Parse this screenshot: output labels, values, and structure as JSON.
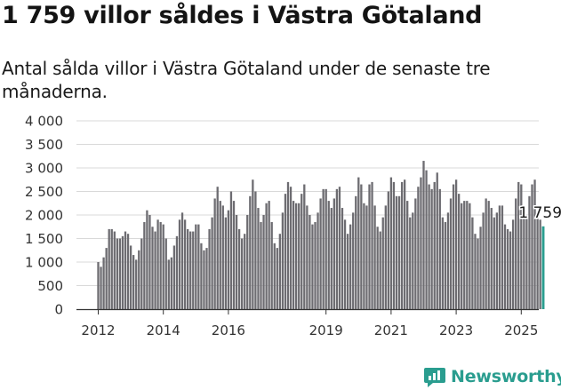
{
  "title": "1 759 villor såldes i Västra Götaland",
  "subtitle": "Antal sålda villor i Västra Götaland under de senaste tre månaderna.",
  "brand": {
    "name": "Newsworthy",
    "icon": "newsworthy-logo-icon",
    "color": "#2a9d8f"
  },
  "colors": {
    "bar": "#6d6c71",
    "highlight": "#2a9d8f",
    "axis": "#333333",
    "grid": "#d9d9d9"
  },
  "chart_data": {
    "type": "bar",
    "title": "",
    "xlabel": "",
    "ylabel": "",
    "ylim": [
      0,
      4000
    ],
    "yticks": [
      {
        "value": 0,
        "label": "0"
      },
      {
        "value": 500,
        "label": "500"
      },
      {
        "value": 1000,
        "label": "1 000"
      },
      {
        "value": 1500,
        "label": "1 500"
      },
      {
        "value": 2000,
        "label": "2 000"
      },
      {
        "value": 2500,
        "label": "2 500"
      },
      {
        "value": 3000,
        "label": "3 000"
      },
      {
        "value": 3500,
        "label": "3 500"
      },
      {
        "value": 4000,
        "label": "4 000"
      }
    ],
    "xticks": [
      {
        "year": 2012,
        "label": "2012"
      },
      {
        "year": 2014,
        "label": "2014"
      },
      {
        "year": 2016,
        "label": "2016"
      },
      {
        "year": 2019,
        "label": "2019"
      },
      {
        "year": 2021,
        "label": "2021"
      },
      {
        "year": 2023,
        "label": "2023"
      },
      {
        "year": 2025,
        "label": "2025"
      }
    ],
    "grid": true,
    "x_start": "2012-01",
    "series": [
      {
        "values": [
          1000,
          900,
          1100,
          1300,
          1700,
          1700,
          1650,
          1500,
          1500,
          1550,
          1650,
          1600,
          1350,
          1150,
          1050,
          1250,
          1500,
          1850,
          2100,
          2000,
          1750,
          1650,
          1900,
          1850,
          1800,
          1500,
          1050,
          1100,
          1350,
          1550,
          1900,
          2050,
          1900,
          1700,
          1650,
          1650,
          1800,
          1800,
          1400,
          1250,
          1300,
          1700,
          1950,
          2350,
          2600,
          2300,
          2200,
          1950,
          2100,
          2500,
          2300,
          2000,
          1700,
          1500,
          1600,
          2000,
          2400,
          2750,
          2500,
          2150,
          1850,
          2000,
          2250,
          2300,
          1850,
          1400,
          1300,
          1600,
          2050,
          2450,
          2700,
          2600,
          2300,
          2250,
          2250,
          2450,
          2650,
          2200,
          2000,
          1800,
          1850,
          2050,
          2350,
          2550,
          2550,
          2300,
          2150,
          2350,
          2550,
          2600,
          2150,
          1900,
          1600,
          1800,
          2050,
          2400,
          2800,
          2650,
          2250,
          2200,
          2650,
          2700,
          2200,
          1750,
          1650,
          1950,
          2200,
          2500,
          2800,
          2700,
          2400,
          2400,
          2700,
          2750,
          2300,
          1950,
          2050,
          2350,
          2600,
          2800,
          3150,
          2950,
          2650,
          2550,
          2700,
          2900,
          2550,
          1950,
          1850,
          2050,
          2350,
          2650,
          2750,
          2450,
          2250,
          2300,
          2300,
          2250,
          1950,
          1600,
          1500,
          1750,
          2050,
          2350,
          2300,
          2150,
          1950,
          2050,
          2200,
          2200,
          1800,
          1700,
          1650,
          1900,
          2350,
          2700,
          2650,
          2100,
          2000,
          2400,
          2650,
          2750,
          2000,
          1900,
          1759
        ]
      }
    ],
    "highlight_label": "1 759"
  }
}
